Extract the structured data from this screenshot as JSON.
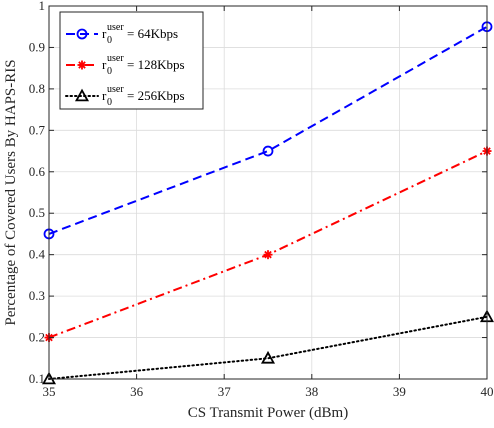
{
  "chart_data": {
    "type": "line",
    "xlabel": "CS Transmit Power (dBm)",
    "ylabel": "Percentage of Covered Users By HAPS-RIS",
    "xlim": [
      35,
      40
    ],
    "ylim": [
      0.1,
      1
    ],
    "x_ticks": [
      "35",
      "36",
      "37",
      "38",
      "39",
      "40"
    ],
    "y_ticks": [
      "0.1",
      "0.2",
      "0.3",
      "0.4",
      "0.5",
      "0.6",
      "0.7",
      "0.8",
      "0.9",
      "1"
    ],
    "grid": true,
    "legend_position": "top-left",
    "x": [
      35,
      37.5,
      40
    ],
    "series": [
      {
        "name_base": "r",
        "name_sub": "0",
        "name_sup": "user",
        "name_value": " = 64Kbps",
        "values": [
          0.45,
          0.65,
          0.95
        ],
        "color": "#0000ff",
        "line_style": "dashed",
        "marker": "circle"
      },
      {
        "name_base": "r",
        "name_sub": "0",
        "name_sup": "user",
        "name_value": " = 128Kbps",
        "values": [
          0.2,
          0.4,
          0.65
        ],
        "color": "#ff0000",
        "line_style": "dash-dot",
        "marker": "asterisk"
      },
      {
        "name_base": "r",
        "name_sub": "0",
        "name_sup": "user",
        "name_value": " = 256Kbps",
        "values": [
          0.1,
          0.15,
          0.25
        ],
        "color": "#000000",
        "line_style": "dotted",
        "marker": "triangle"
      }
    ]
  }
}
